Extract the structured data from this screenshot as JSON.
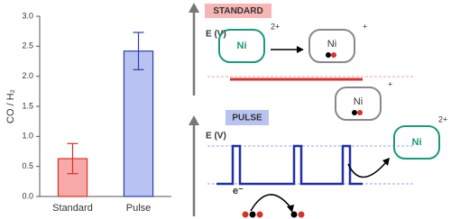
{
  "chart_data": {
    "type": "bar",
    "ylabel": "CO / H₂",
    "categories": [
      "Standard",
      "Pulse"
    ],
    "values": [
      0.63,
      2.42
    ],
    "errors": [
      0.25,
      0.31
    ],
    "colors": [
      "#f7a9a8",
      "#b9c3f2"
    ],
    "edge_colors": [
      "#d9312b",
      "#2a3fb0"
    ],
    "ylim": [
      0,
      3
    ],
    "yticks": [
      {
        "value": 0,
        "label": "0.0"
      },
      {
        "value": 0.5,
        "label": "0.5"
      },
      {
        "value": 1,
        "label": "1.0"
      },
      {
        "value": 1.5,
        "label": "1.5"
      },
      {
        "value": 2,
        "label": "2.0"
      },
      {
        "value": 2.5,
        "label": "2.5"
      },
      {
        "value": 3,
        "label": "3.0"
      }
    ]
  },
  "diagram": {
    "standard_label": "STANDARD",
    "pulse_label": "PULSE",
    "axis_label": "E (V)",
    "metal": "Ni",
    "electron": "e⁻",
    "charge_2": "2+",
    "charge_1": "+"
  }
}
